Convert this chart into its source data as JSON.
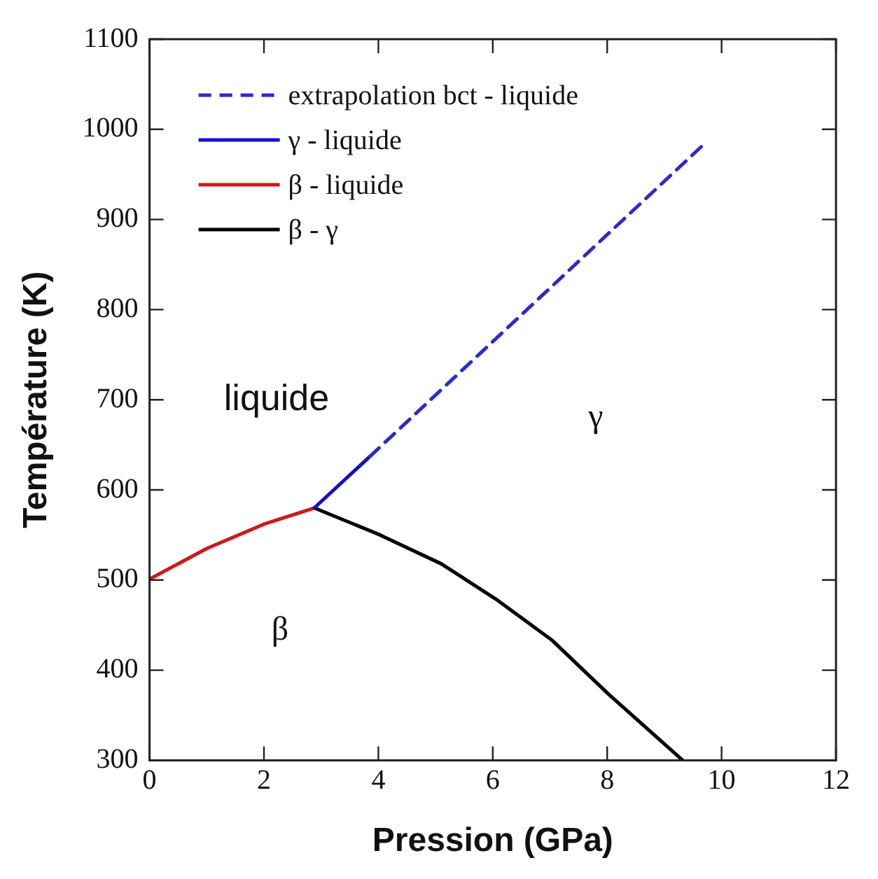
{
  "chart_data": {
    "type": "line",
    "xlabel": "Pression (GPa)",
    "ylabel": "Température (K)",
    "xlim": [
      0,
      12
    ],
    "xticks": [
      0,
      2,
      4,
      6,
      8,
      10,
      12
    ],
    "ylim": [
      300,
      1100
    ],
    "yticks": [
      300,
      400,
      500,
      600,
      700,
      800,
      900,
      1000,
      1100
    ],
    "grid": false,
    "legend": "top left",
    "marker": "none",
    "series": [
      {
        "name": "extrapolation bct - liquide",
        "color": "#2b2bd0",
        "line_style": "dashed",
        "x": [
          3.85,
          9.7
        ],
        "values": [
          637,
          984
        ]
      },
      {
        "name": "γ - liquide",
        "color": "#1010d0",
        "line_style": "solid",
        "x": [
          2.88,
          3.85
        ],
        "values": [
          580,
          637
        ]
      },
      {
        "name": "β - liquide",
        "color": "#d01818",
        "line_style": "solid",
        "x": [
          0,
          1,
          2,
          2.88
        ],
        "values": [
          501,
          535,
          562,
          580
        ]
      },
      {
        "name": "β - γ",
        "color": "#000000",
        "line_style": "solid",
        "x": [
          2.88,
          4.03,
          5.1,
          6.05,
          7.04,
          8.03,
          9.32
        ],
        "values": [
          580,
          550,
          518,
          479,
          433,
          373,
          300
        ]
      }
    ],
    "annotations": [
      "liquide",
      "γ",
      "β"
    ]
  }
}
